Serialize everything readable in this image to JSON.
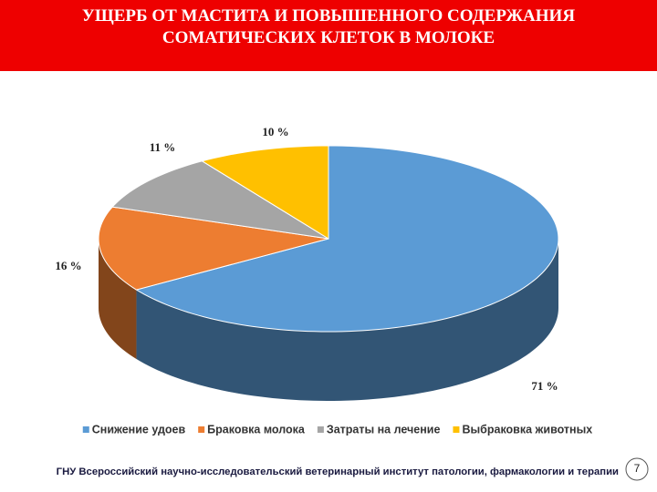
{
  "chart_data": {
    "type": "pie",
    "title": "УЩЕРБ ОТ МАСТИТА И ПОВЫШЕННОГО СОДЕРЖАНИЯ СОМАТИЧЕСКИХ КЛЕТОК В МОЛОКЕ",
    "categories": [
      "Снижение удоев",
      "Браковка молока",
      "Затраты на лечение",
      "Выбраковка животных"
    ],
    "values": [
      71,
      16,
      11,
      10
    ],
    "value_labels": [
      "71 %",
      "16 %",
      "11 %",
      "10 %"
    ],
    "colors": [
      "#5b9bd5",
      "#ed7d31",
      "#a5a5a5",
      "#ffc000"
    ],
    "legend": "bottom"
  },
  "footer": "ГНУ Всероссийский научно-исследовательский ветеринарный институт патологии, фармакологии и терапии",
  "page_number": "7"
}
